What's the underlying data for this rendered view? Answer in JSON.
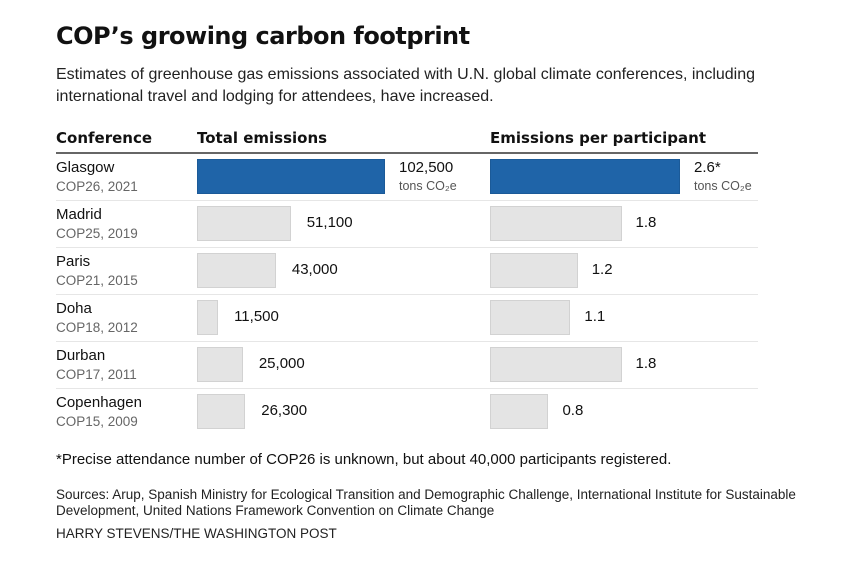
{
  "title": "COP’s growing carbon footprint",
  "subtitle": "Estimates of greenhouse gas emissions associated with U.N. global climate conferences, including international travel and lodging for attendees, have increased.",
  "headers": {
    "conference": "Conference",
    "total": "Total emissions",
    "per_participant": "Emissions per participant"
  },
  "colors": {
    "highlight": "#1f64a8",
    "bar": "#e4e4e4"
  },
  "chart_data": {
    "type": "bar",
    "title": "COP’s growing carbon footprint",
    "orientation": "horizontal",
    "unit": "tons CO₂e",
    "categories": [
      "Glasgow",
      "Madrid",
      "Paris",
      "Doha",
      "Durban",
      "Copenhagen"
    ],
    "category_sublabels": [
      "COP26, 2021",
      "COP25, 2019",
      "COP21, 2015",
      "COP18, 2012",
      "COP17, 2011",
      "COP15, 2009"
    ],
    "series": [
      {
        "name": "Total emissions",
        "values": [
          102500,
          51100,
          43000,
          11500,
          25000,
          26300
        ],
        "labels": [
          "102,500",
          "51,100",
          "43,000",
          "11,500",
          "25,000",
          "26,300"
        ],
        "xlim": [
          0,
          102500
        ]
      },
      {
        "name": "Emissions per participant",
        "values": [
          2.6,
          1.8,
          1.2,
          1.1,
          1.8,
          0.8
        ],
        "labels": [
          "2.6*",
          "1.8",
          "1.2",
          "1.1",
          "1.8",
          "0.8"
        ],
        "xlim": [
          0,
          2.6
        ]
      }
    ],
    "highlight_index": 0,
    "unit_label": "tons CO₂e"
  },
  "note": "*Precise attendance number of COP26 is unknown, but about 40,000 participants registered.",
  "sources": "Sources: Arup, Spanish Ministry for Ecological Transition and Demographic Challenge, International Institute for Sustainable Development, United Nations Framework Convention on Climate Change",
  "credit": "HARRY STEVENS/THE WASHINGTON POST"
}
